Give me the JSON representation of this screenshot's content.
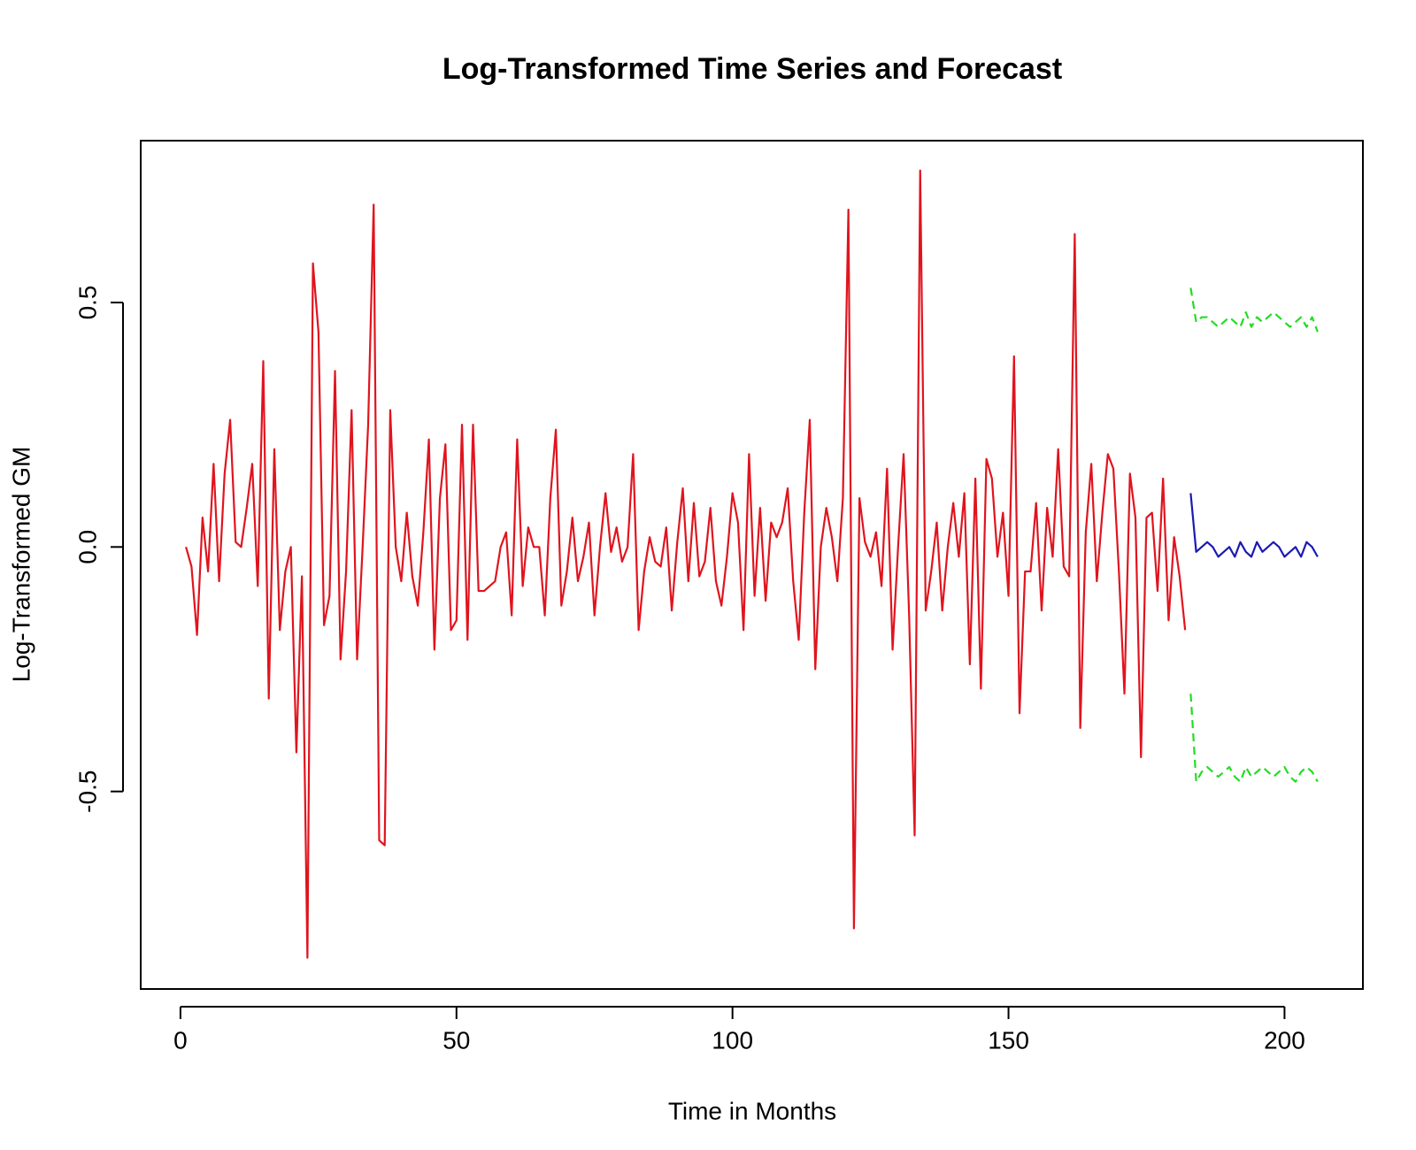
{
  "chart_data": {
    "type": "line",
    "title": "Log-Transformed Time Series and Forecast",
    "x_label": "Time in Months",
    "y_label": "Log-Transformed GM",
    "xlim": [
      -7.2,
      214.2
    ],
    "ylim": [
      -0.904,
      0.831
    ],
    "xticks": [
      0,
      50,
      100,
      150,
      200
    ],
    "yticks": [
      -0.5,
      {
        "value": 0,
        "label": "0.0"
      },
      0.5
    ],
    "grid": false,
    "series": [
      {
        "color": "#e0141e",
        "linestyle": "solid",
        "x": [
          1,
          2,
          3,
          4,
          5,
          6,
          7,
          8,
          9,
          10,
          11,
          12,
          13,
          14,
          15,
          16,
          17,
          18,
          19,
          20,
          21,
          22,
          23,
          24,
          25,
          26,
          27,
          28,
          29,
          30,
          31,
          32,
          33,
          34,
          35,
          36,
          37,
          38,
          39,
          40,
          41,
          42,
          43,
          44,
          45,
          46,
          47,
          48,
          49,
          50,
          51,
          52,
          53,
          54,
          55,
          56,
          57,
          58,
          59,
          60,
          61,
          62,
          63,
          64,
          65,
          66,
          67,
          68,
          69,
          70,
          71,
          72,
          73,
          74,
          75,
          76,
          77,
          78,
          79,
          80,
          81,
          82,
          83,
          84,
          85,
          86,
          87,
          88,
          89,
          90,
          91,
          92,
          93,
          94,
          95,
          96,
          97,
          98,
          99,
          100,
          101,
          102,
          103,
          104,
          105,
          106,
          107,
          108,
          109,
          110,
          111,
          112,
          113,
          114,
          115,
          116,
          117,
          118,
          119,
          120,
          121,
          122,
          123,
          124,
          125,
          126,
          127,
          128,
          129,
          130,
          131,
          132,
          133,
          134,
          135,
          136,
          137,
          138,
          139,
          140,
          141,
          142,
          143,
          144,
          145,
          146,
          147,
          148,
          149,
          150,
          151,
          152,
          153,
          154,
          155,
          156,
          157,
          158,
          159,
          160,
          161,
          162,
          163,
          164,
          165,
          166,
          167,
          168,
          169,
          170,
          171,
          172,
          173,
          174,
          175,
          176,
          177,
          178,
          179,
          180,
          181,
          182
        ],
        "values": [
          0.0,
          -0.04,
          -0.18,
          0.06,
          -0.05,
          0.17,
          -0.07,
          0.15,
          0.26,
          0.01,
          0.0,
          0.08,
          0.17,
          -0.08,
          0.38,
          -0.31,
          0.2,
          -0.17,
          -0.05,
          0.0,
          -0.42,
          -0.06,
          -0.84,
          0.58,
          0.44,
          -0.16,
          -0.1,
          0.36,
          -0.23,
          -0.05,
          0.28,
          -0.23,
          0.0,
          0.25,
          0.7,
          -0.6,
          -0.61,
          0.28,
          0.0,
          -0.07,
          0.07,
          -0.06,
          -0.12,
          0.03,
          0.22,
          -0.21,
          0.1,
          0.21,
          -0.17,
          -0.15,
          0.25,
          -0.19,
          0.25,
          -0.09,
          -0.09,
          -0.08,
          -0.07,
          0.0,
          0.03,
          -0.14,
          0.22,
          -0.08,
          0.04,
          0.0,
          0.0,
          -0.14,
          0.1,
          0.24,
          -0.12,
          -0.05,
          0.06,
          -0.07,
          -0.02,
          0.05,
          -0.14,
          0.0,
          0.11,
          -0.01,
          0.04,
          -0.03,
          0.0,
          0.19,
          -0.17,
          -0.05,
          0.02,
          -0.03,
          -0.04,
          0.04,
          -0.13,
          0.01,
          0.12,
          -0.07,
          0.09,
          -0.06,
          -0.03,
          0.08,
          -0.07,
          -0.12,
          -0.02,
          0.11,
          0.05,
          -0.17,
          0.19,
          -0.1,
          0.08,
          -0.11,
          0.05,
          0.02,
          0.05,
          0.12,
          -0.07,
          -0.19,
          0.07,
          0.26,
          -0.25,
          0.0,
          0.08,
          0.02,
          -0.07,
          0.1,
          0.69,
          -0.78,
          0.1,
          0.01,
          -0.02,
          0.03,
          -0.08,
          0.16,
          -0.21,
          0.0,
          0.19,
          -0.14,
          -0.59,
          0.77,
          -0.13,
          -0.05,
          0.05,
          -0.13,
          0.0,
          0.09,
          -0.02,
          0.11,
          -0.24,
          0.14,
          -0.29,
          0.18,
          0.14,
          -0.02,
          0.07,
          -0.1,
          0.39,
          -0.34,
          -0.05,
          -0.05,
          0.09,
          -0.13,
          0.08,
          -0.02,
          0.2,
          -0.04,
          -0.06,
          0.64,
          -0.37,
          0.03,
          0.17,
          -0.07,
          0.07,
          0.19,
          0.16,
          -0.05,
          -0.3,
          0.15,
          0.06,
          -0.43,
          0.06,
          0.07,
          -0.09,
          0.14,
          -0.15,
          0.02,
          -0.06,
          -0.17
        ]
      },
      {
        "color": "#1a1ab4",
        "linestyle": "solid",
        "x": [
          183,
          184,
          185,
          186,
          187,
          188,
          189,
          190,
          191,
          192,
          193,
          194,
          195,
          196,
          197,
          198,
          199,
          200,
          201,
          202,
          203,
          204,
          205,
          206
        ],
        "values": [
          0.11,
          -0.01,
          0.0,
          0.01,
          0.0,
          -0.02,
          -0.01,
          0.0,
          -0.02,
          0.01,
          -0.01,
          -0.02,
          0.01,
          -0.01,
          0.0,
          0.01,
          0.0,
          -0.02,
          -0.01,
          0.0,
          -0.02,
          0.01,
          0.0,
          -0.02
        ]
      },
      {
        "color": "#22dd22",
        "linestyle": "dashed",
        "x": [
          183,
          184,
          185,
          186,
          187,
          188,
          189,
          190,
          191,
          192,
          193,
          194,
          195,
          196,
          197,
          198,
          199,
          200,
          201,
          202,
          203,
          204,
          205,
          206
        ],
        "values": [
          0.53,
          0.46,
          0.47,
          0.47,
          0.46,
          0.45,
          0.46,
          0.47,
          0.46,
          0.45,
          0.48,
          0.45,
          0.47,
          0.46,
          0.47,
          0.48,
          0.47,
          0.46,
          0.45,
          0.46,
          0.47,
          0.45,
          0.47,
          0.44
        ]
      },
      {
        "color": "#22dd22",
        "linestyle": "dashed",
        "x": [
          183,
          184,
          185,
          186,
          187,
          188,
          189,
          190,
          191,
          192,
          193,
          194,
          195,
          196,
          197,
          198,
          199,
          200,
          201,
          202,
          203,
          204,
          205,
          206
        ],
        "values": [
          -0.3,
          -0.48,
          -0.46,
          -0.45,
          -0.46,
          -0.47,
          -0.46,
          -0.45,
          -0.47,
          -0.48,
          -0.45,
          -0.47,
          -0.46,
          -0.45,
          -0.46,
          -0.47,
          -0.46,
          -0.45,
          -0.47,
          -0.48,
          -0.46,
          -0.45,
          -0.46,
          -0.48
        ]
      }
    ]
  }
}
